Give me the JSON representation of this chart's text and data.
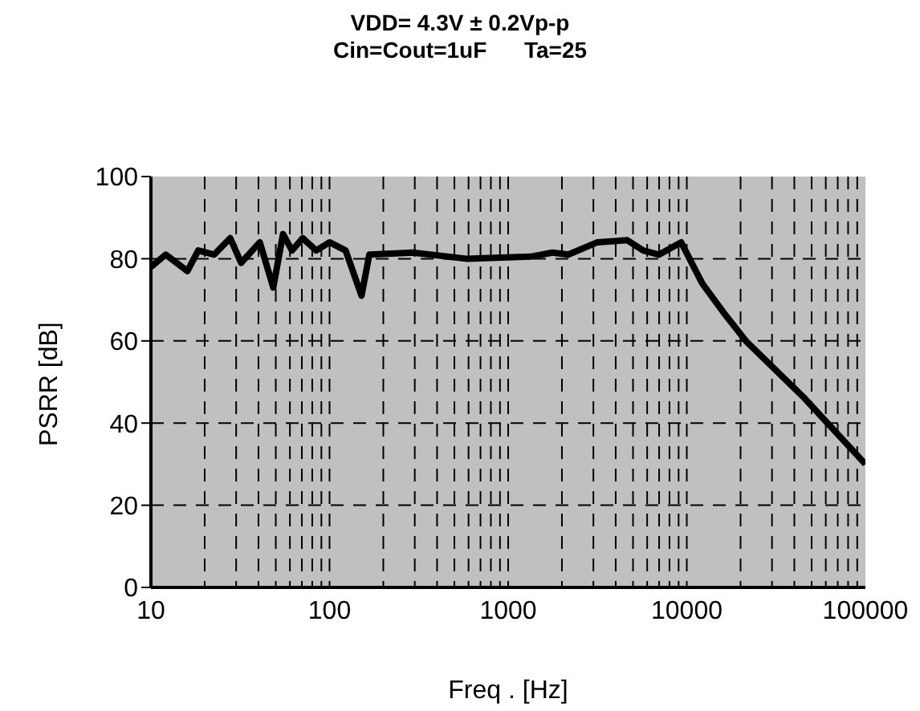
{
  "chart_data": {
    "type": "line",
    "title": "VDD= 4.3V ± 0.2Vp-p",
    "subtitle": "Cin=Cout=1uF      Ta=25",
    "xlabel": "Freq . [Hz]",
    "ylabel": "PSRR [dB]",
    "log": "x",
    "grid": true,
    "marker": "none",
    "line_style": "solid",
    "legend": false,
    "x": [
      10,
      12.1,
      16,
      18.4,
      22.6,
      27.8,
      32,
      40.7,
      48.4,
      54.9,
      61.6,
      70.7,
      84.3,
      100,
      123,
      151,
      167,
      292,
      582,
      1335,
      1770,
      2170,
      3160,
      4640,
      5700,
      7000,
      9300,
      12200,
      16000,
      21400,
      45700,
      100000
    ],
    "series": [
      {
        "color": "#000000",
        "values": [
          78,
          81,
          77,
          82,
          81,
          85,
          79,
          84,
          73,
          86,
          82,
          85,
          82,
          84,
          82,
          71,
          81,
          81.5,
          80,
          80.5,
          81.5,
          81,
          84,
          84.5,
          82,
          81,
          84,
          74,
          67,
          60,
          46,
          30
        ]
      }
    ],
    "xlim": [
      10,
      100000
    ],
    "xticks": [
      10,
      {
        "value": 20,
        "label": null
      },
      {
        "value": 30,
        "label": null
      },
      {
        "value": 40,
        "label": null
      },
      {
        "value": 50,
        "label": null
      },
      {
        "value": 60,
        "label": null
      },
      {
        "value": 70,
        "label": null
      },
      {
        "value": 80,
        "label": null
      },
      {
        "value": 90,
        "label": null
      },
      100,
      {
        "value": 200,
        "label": null
      },
      {
        "value": 300,
        "label": null
      },
      {
        "value": 400,
        "label": null
      },
      {
        "value": 500,
        "label": null
      },
      {
        "value": 600,
        "label": null
      },
      {
        "value": 700,
        "label": null
      },
      {
        "value": 800,
        "label": null
      },
      {
        "value": 900,
        "label": null
      },
      1000,
      {
        "value": 2000,
        "label": null
      },
      {
        "value": 3000,
        "label": null
      },
      {
        "value": 4000,
        "label": null
      },
      {
        "value": 5000,
        "label": null
      },
      {
        "value": 6000,
        "label": null
      },
      {
        "value": 7000,
        "label": null
      },
      {
        "value": 8000,
        "label": null
      },
      {
        "value": 9000,
        "label": null
      },
      10000,
      {
        "value": 20000,
        "label": null
      },
      {
        "value": 30000,
        "label": null
      },
      {
        "value": 40000,
        "label": null
      },
      {
        "value": 50000,
        "label": null
      },
      {
        "value": 60000,
        "label": null
      },
      {
        "value": 70000,
        "label": null
      },
      {
        "value": 80000,
        "label": null
      },
      {
        "value": 90000,
        "label": null
      },
      100000
    ],
    "ylim": [
      0,
      100
    ],
    "yticks": [
      0,
      20,
      40,
      60,
      80,
      100
    ]
  }
}
